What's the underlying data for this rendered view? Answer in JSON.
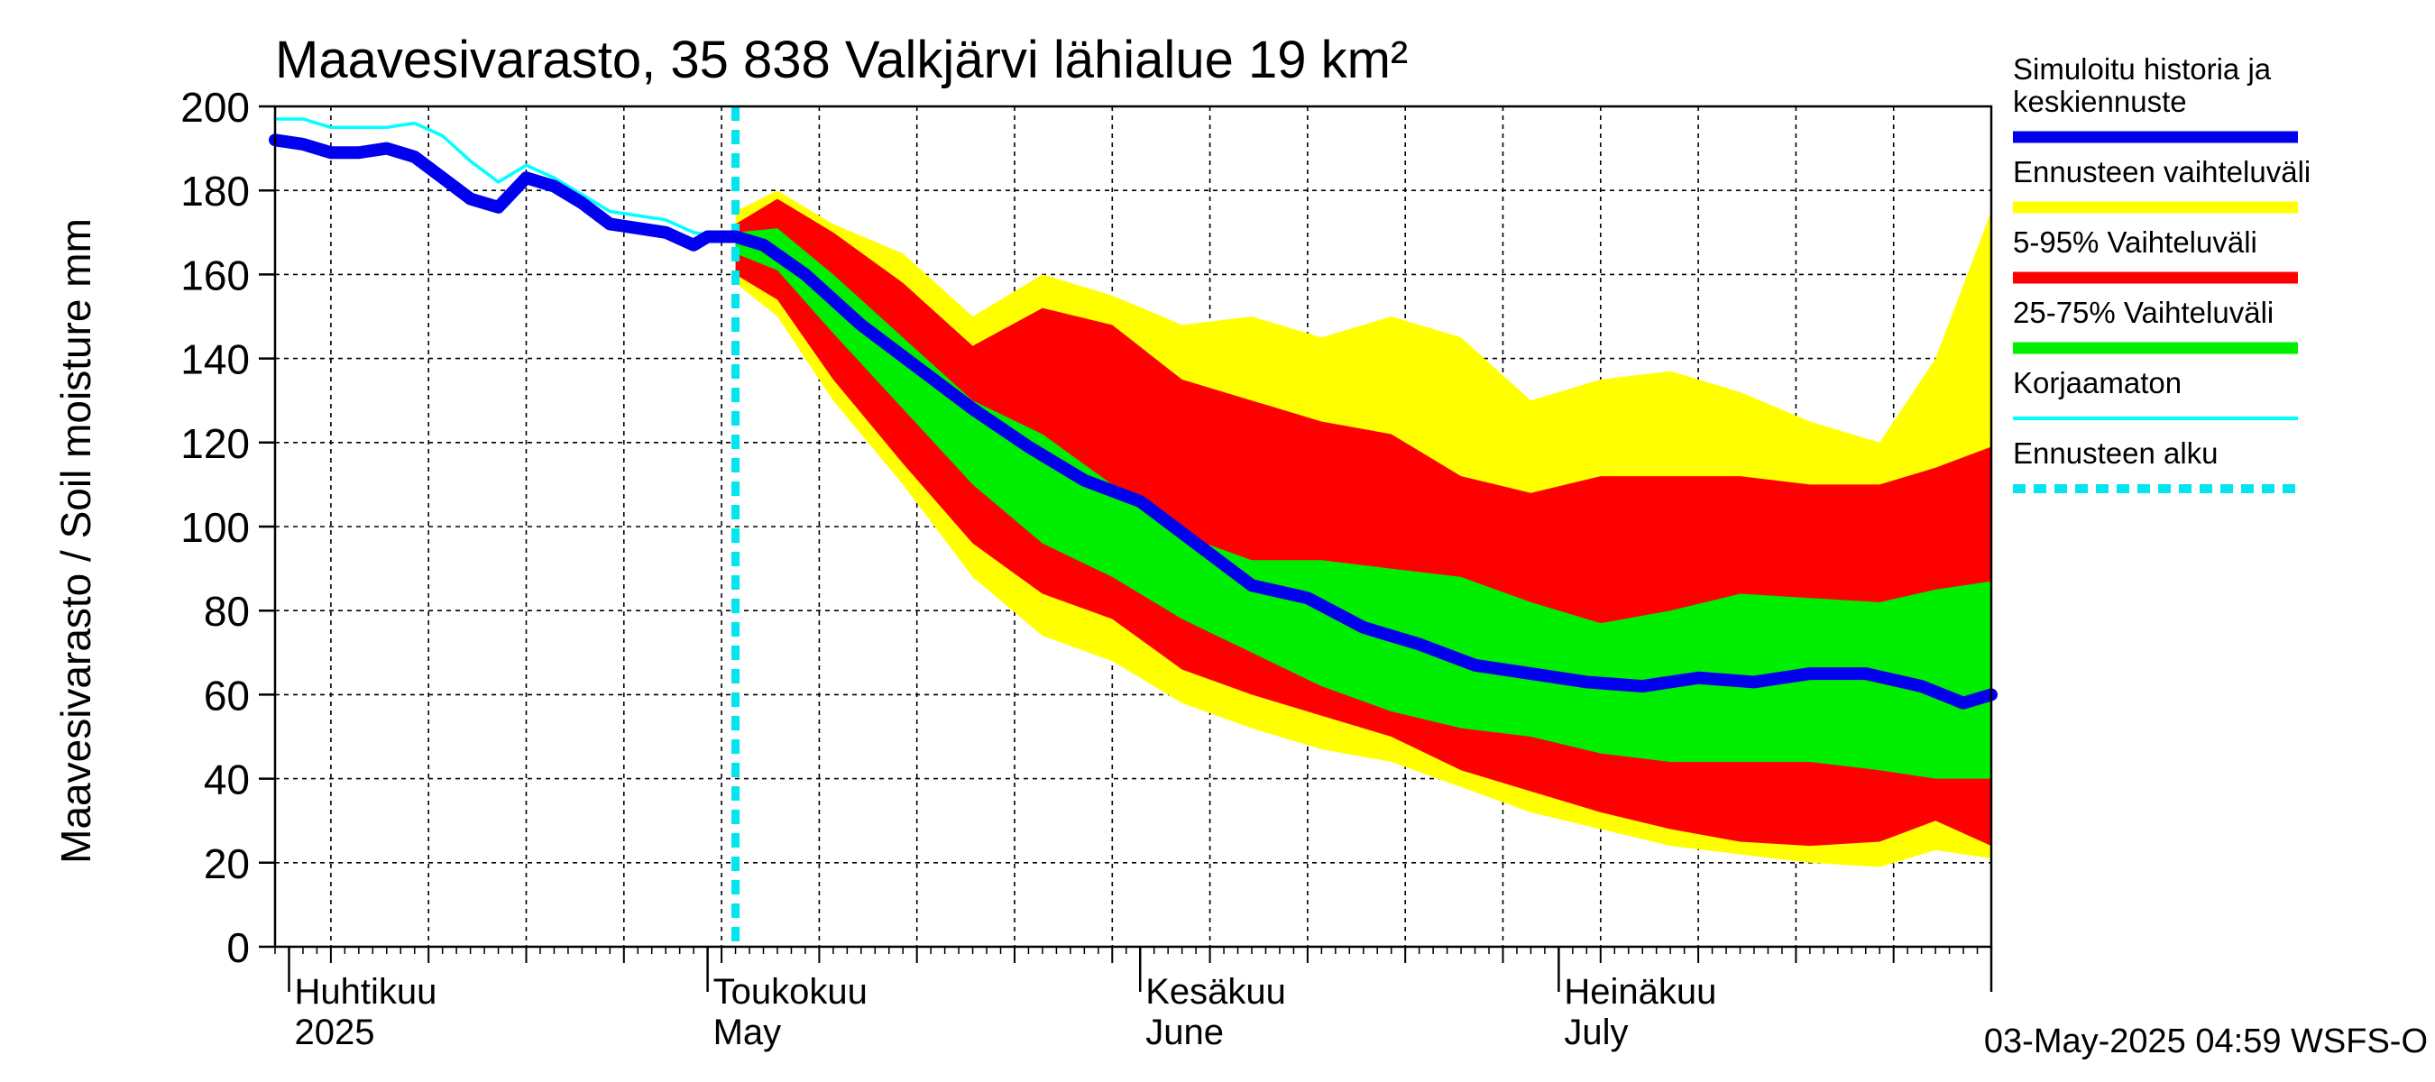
{
  "chart_data": {
    "type": "area",
    "title": "Maavesivarasto, 35 838 Valkjärvi lähialue 19 km²",
    "ylabel": "Maavesivarasto / Soil moisture   mm",
    "ylim": [
      0,
      200
    ],
    "yticks": [
      0,
      20,
      40,
      60,
      80,
      100,
      120,
      140,
      160,
      180,
      200
    ],
    "xlim": [
      "2025-03-31",
      "2025-08-01"
    ],
    "month_labels": [
      {
        "date": "2025-04-01",
        "line1": "Huhtikuu",
        "line2": "2025"
      },
      {
        "date": "2025-05-01",
        "line1": "Toukokuu",
        "line2": "May"
      },
      {
        "date": "2025-06-01",
        "line1": "Kesäkuu",
        "line2": "June"
      },
      {
        "date": "2025-07-01",
        "line1": "Heinäkuu",
        "line2": "July"
      }
    ],
    "forecast_start": "2025-05-03",
    "footer": "03-May-2025 04:59 WSFS-O",
    "legend": [
      {
        "label": "Simuloitu historia ja keskiennuste",
        "color": "#0000ee",
        "style": "thick"
      },
      {
        "label": "Ennusteen vaihteluväli",
        "color": "#ffff00",
        "style": "band"
      },
      {
        "label": "5-95% Vaihteluväli",
        "color": "#ff0000",
        "style": "band"
      },
      {
        "label": "25-75% Vaihteluväli",
        "color": "#00ee00",
        "style": "band"
      },
      {
        "label": "Korjaamaton",
        "color": "#00ffff",
        "style": "thin"
      },
      {
        "label": "Ennusteen alku",
        "color": "#00e5ee",
        "style": "dashed"
      }
    ],
    "series": [
      {
        "name": "Ennusteen vaihteluväli",
        "color": "#ffff00",
        "type": "band",
        "x": [
          "2025-05-03",
          "2025-05-06",
          "2025-05-10",
          "2025-05-15",
          "2025-05-20",
          "2025-05-25",
          "2025-05-30",
          "2025-06-04",
          "2025-06-09",
          "2025-06-14",
          "2025-06-19",
          "2025-06-24",
          "2025-06-29",
          "2025-07-04",
          "2025-07-09",
          "2025-07-14",
          "2025-07-19",
          "2025-07-24",
          "2025-07-28",
          "2025-08-01"
        ],
        "upper": [
          175,
          180,
          172,
          165,
          150,
          160,
          155,
          148,
          150,
          145,
          150,
          145,
          130,
          135,
          137,
          132,
          125,
          120,
          140,
          175
        ],
        "lower": [
          158,
          150,
          130,
          110,
          88,
          74,
          68,
          58,
          52,
          47,
          44,
          38,
          32,
          28,
          24,
          22,
          20,
          19,
          23,
          21
        ]
      },
      {
        "name": "5-95% Vaihteluväli",
        "color": "#ff0000",
        "type": "band",
        "x": [
          "2025-05-03",
          "2025-05-06",
          "2025-05-10",
          "2025-05-15",
          "2025-05-20",
          "2025-05-25",
          "2025-05-30",
          "2025-06-04",
          "2025-06-09",
          "2025-06-14",
          "2025-06-19",
          "2025-06-24",
          "2025-06-29",
          "2025-07-04",
          "2025-07-09",
          "2025-07-14",
          "2025-07-19",
          "2025-07-24",
          "2025-07-28",
          "2025-08-01"
        ],
        "upper": [
          172,
          178,
          170,
          158,
          143,
          152,
          148,
          135,
          130,
          125,
          122,
          112,
          108,
          112,
          112,
          112,
          110,
          110,
          114,
          119
        ],
        "lower": [
          160,
          154,
          135,
          115,
          96,
          84,
          78,
          66,
          60,
          55,
          50,
          42,
          37,
          32,
          28,
          25,
          24,
          25,
          30,
          24
        ]
      },
      {
        "name": "25-75% Vaihteluväli",
        "color": "#00ee00",
        "type": "band",
        "x": [
          "2025-05-03",
          "2025-05-06",
          "2025-05-10",
          "2025-05-15",
          "2025-05-20",
          "2025-05-25",
          "2025-05-30",
          "2025-06-04",
          "2025-06-09",
          "2025-06-14",
          "2025-06-19",
          "2025-06-24",
          "2025-06-29",
          "2025-07-04",
          "2025-07-09",
          "2025-07-14",
          "2025-07-19",
          "2025-07-24",
          "2025-07-28",
          "2025-08-01"
        ],
        "upper": [
          170,
          171,
          160,
          145,
          130,
          122,
          110,
          98,
          92,
          92,
          90,
          88,
          82,
          77,
          80,
          84,
          83,
          82,
          85,
          87
        ],
        "lower": [
          165,
          161,
          146,
          128,
          110,
          96,
          88,
          78,
          70,
          62,
          56,
          52,
          50,
          46,
          44,
          44,
          44,
          42,
          40,
          40
        ]
      },
      {
        "name": "Korjaamaton",
        "color": "#00ffff",
        "type": "line",
        "x": [
          "2025-03-31",
          "2025-04-02",
          "2025-04-04",
          "2025-04-06",
          "2025-04-08",
          "2025-04-10",
          "2025-04-12",
          "2025-04-14",
          "2025-04-16",
          "2025-04-18",
          "2025-04-20",
          "2025-04-22",
          "2025-04-24",
          "2025-04-26",
          "2025-04-28",
          "2025-04-30",
          "2025-05-02",
          "2025-05-03"
        ],
        "values": [
          197,
          197,
          195,
          195,
          195,
          196,
          193,
          187,
          182,
          186,
          183,
          179,
          175,
          174,
          173,
          170,
          169,
          168
        ]
      },
      {
        "name": "Simuloitu historia ja keskiennuste",
        "color": "#0000ee",
        "type": "line",
        "x": [
          "2025-03-31",
          "2025-04-02",
          "2025-04-04",
          "2025-04-06",
          "2025-04-08",
          "2025-04-10",
          "2025-04-12",
          "2025-04-14",
          "2025-04-16",
          "2025-04-18",
          "2025-04-20",
          "2025-04-22",
          "2025-04-24",
          "2025-04-26",
          "2025-04-28",
          "2025-04-30",
          "2025-05-01",
          "2025-05-03",
          "2025-05-05",
          "2025-05-08",
          "2025-05-12",
          "2025-05-16",
          "2025-05-20",
          "2025-05-24",
          "2025-05-28",
          "2025-06-01",
          "2025-06-05",
          "2025-06-09",
          "2025-06-13",
          "2025-06-17",
          "2025-06-21",
          "2025-06-25",
          "2025-06-29",
          "2025-07-03",
          "2025-07-07",
          "2025-07-11",
          "2025-07-15",
          "2025-07-19",
          "2025-07-23",
          "2025-07-27",
          "2025-07-30",
          "2025-08-01"
        ],
        "values": [
          192,
          191,
          189,
          189,
          190,
          188,
          183,
          178,
          176,
          183,
          181,
          177,
          172,
          171,
          170,
          167,
          169,
          169,
          167,
          160,
          148,
          138,
          128,
          119,
          111,
          106,
          96,
          86,
          83,
          76,
          72,
          67,
          65,
          63,
          62,
          64,
          63,
          65,
          65,
          62,
          58,
          60
        ]
      }
    ]
  }
}
